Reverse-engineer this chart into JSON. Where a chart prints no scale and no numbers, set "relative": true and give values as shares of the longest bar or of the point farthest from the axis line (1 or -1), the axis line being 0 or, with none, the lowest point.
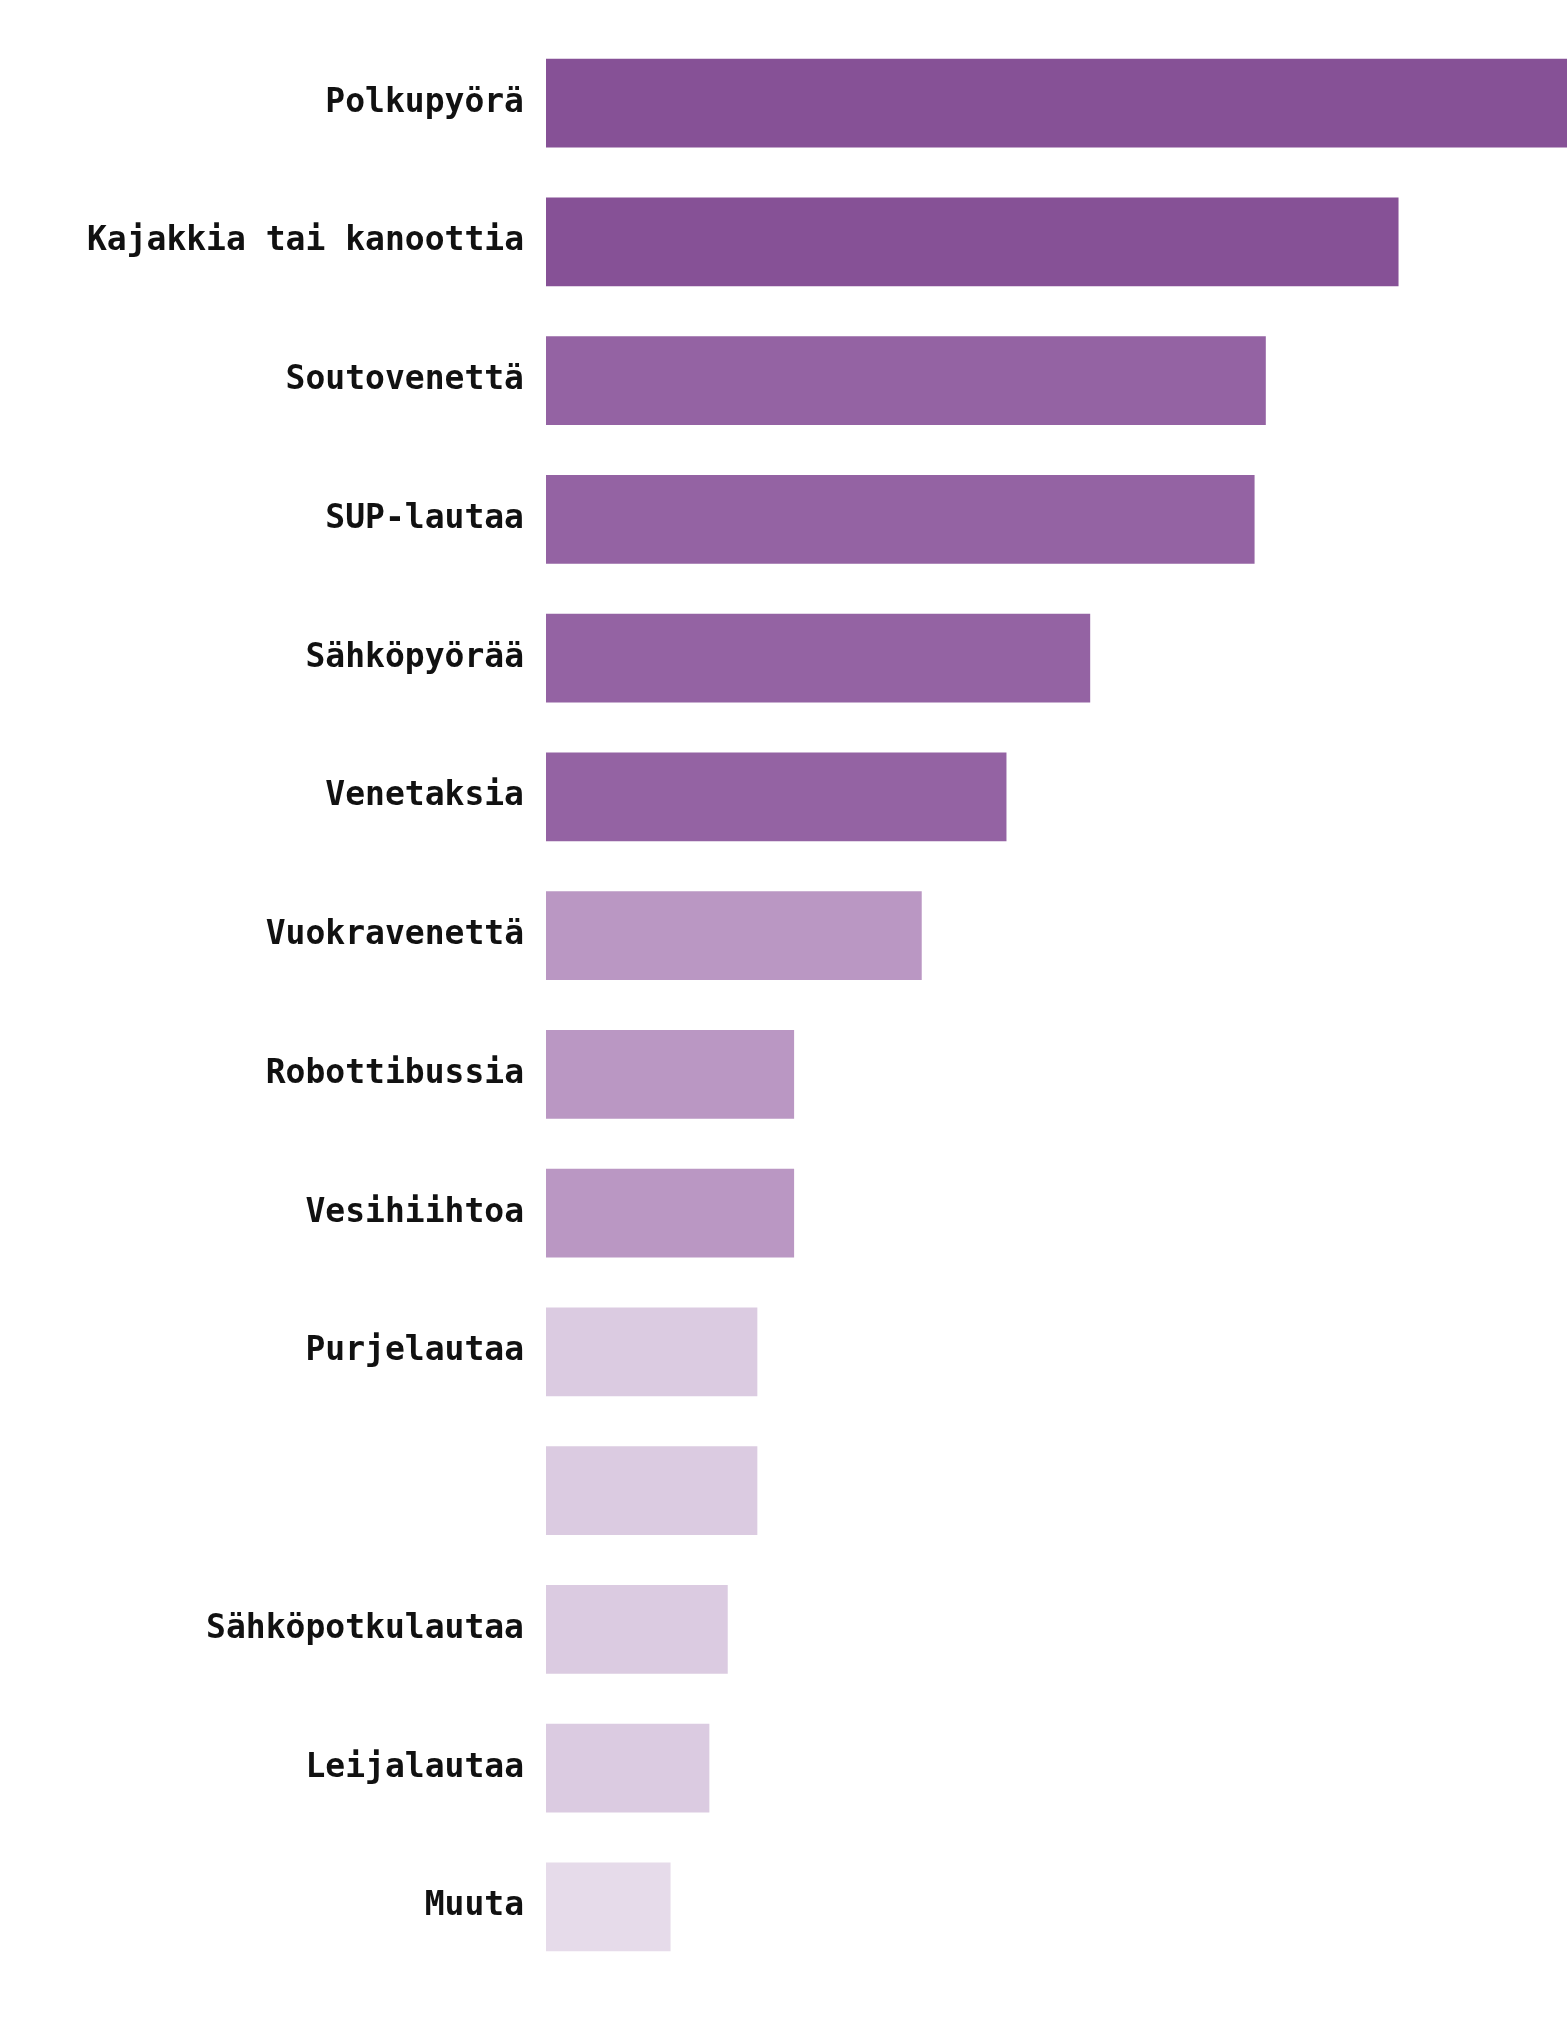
{
  "chart_data": {
    "type": "bar",
    "orientation": "horizontal",
    "relative": true,
    "grid": false,
    "legend": false,
    "categories": [
      "Polkupyörä",
      "Kajakkia tai kanoottia",
      "Soutovenettä",
      "SUP-lautaa",
      "Sähköpyörää",
      "Venetaksia",
      "Vuokravenettä",
      "Robottibussia",
      "Vesihiihtoa",
      "Purjelautaa",
      null,
      "Sähköpotkulautaa",
      "Leijalautaa",
      "Muuta"
    ],
    "values": [
      1,
      0.835,
      0.705,
      0.694,
      0.533,
      0.451,
      0.368,
      0.243,
      0.243,
      0.207,
      0.207,
      0.178,
      0.16,
      0.122
    ],
    "colors": [
      "#865196",
      "#865196",
      "#9463a3",
      "#9463a3",
      "#9463a3",
      "#9463a3",
      "#ba97c3",
      "#ba97c3",
      "#ba97c3",
      "#dbcbe1",
      "#dbcbe1",
      "#dbcbe1",
      "#dbcbe1",
      "#e6dbea"
    ]
  }
}
